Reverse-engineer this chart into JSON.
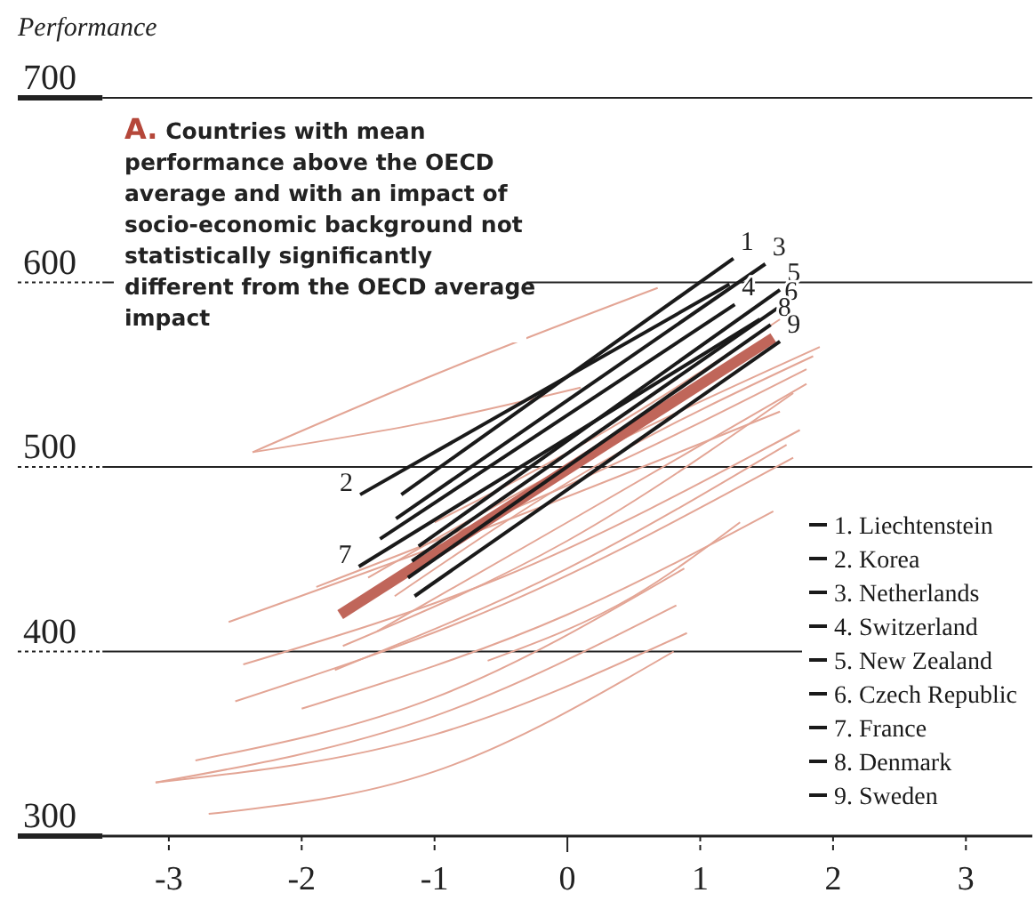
{
  "chart_data": {
    "type": "line",
    "title": "A. Countries with mean performance above the OECD average and with an impact of socio-economic background not statistically significantly different from the OECD average impact",
    "ylabel": "Performance",
    "xlim": [
      -3.5,
      3.5
    ],
    "xticks": [
      -3,
      -2,
      -1,
      0,
      1,
      2,
      3
    ],
    "ylim": [
      300,
      700
    ],
    "yticks": [
      300,
      400,
      500,
      600,
      700
    ],
    "grid": "y",
    "legend": "bottom right",
    "series": [
      {
        "color": "#e3a595",
        "x": [
          -2.37,
          -1,
          0.68
        ],
        "values": [
          508,
          550,
          597
        ]
      },
      {
        "color": "#e3a595",
        "x": [
          -2.37,
          -1,
          0.1
        ],
        "values": [
          508,
          525,
          543
        ]
      },
      {
        "color": "#e3a595",
        "x": [
          -2.55,
          -0.5,
          1.6
        ],
        "values": [
          416,
          470,
          530
        ]
      },
      {
        "color": "#e3a595",
        "x": [
          -1.89,
          0,
          1.8
        ],
        "values": [
          435,
          490,
          553
        ]
      },
      {
        "color": "#e3a595",
        "x": [
          -2.44,
          -0.5,
          1.75
        ],
        "values": [
          393,
          440,
          520
        ]
      },
      {
        "color": "#e3a595",
        "x": [
          -2.5,
          -0.5,
          1.7
        ],
        "values": [
          373,
          425,
          505
        ]
      },
      {
        "color": "#e3a595",
        "x": [
          -2.0,
          0,
          1.55
        ],
        "values": [
          369,
          420,
          476
        ]
      },
      {
        "color": "#e3a595",
        "x": [
          -2.8,
          -1,
          0.88
        ],
        "values": [
          341,
          375,
          445
        ]
      },
      {
        "color": "#e3a595",
        "x": [
          -3.1,
          -1,
          0.82
        ],
        "values": [
          329,
          365,
          425
        ]
      },
      {
        "color": "#e3a595",
        "x": [
          -3.1,
          -1,
          0.9
        ],
        "values": [
          329,
          355,
          410
        ]
      },
      {
        "color": "#e3a595",
        "x": [
          -2.7,
          -1,
          0.8
        ],
        "values": [
          312,
          335,
          400
        ]
      },
      {
        "color": "#e3a595",
        "x": [
          -1.69,
          0,
          1.7
        ],
        "values": [
          403,
          460,
          540
        ]
      },
      {
        "color": "#e3a595",
        "x": [
          -1.75,
          0,
          1.65
        ],
        "values": [
          390,
          445,
          512
        ]
      },
      {
        "color": "#e3a595",
        "x": [
          -1.43,
          0,
          1.8
        ],
        "values": [
          411,
          470,
          545
        ]
      },
      {
        "color": "#e3a595",
        "x": [
          -1.5,
          0,
          1.9
        ],
        "values": [
          440,
          500,
          565
        ]
      },
      {
        "color": "#e3a595",
        "x": [
          -1.3,
          0.2,
          1.85
        ],
        "values": [
          430,
          500,
          560
        ]
      },
      {
        "color": "#e3a595",
        "x": [
          -1.0,
          0.3,
          1.6
        ],
        "values": [
          470,
          520,
          580
        ]
      },
      {
        "color": "#e3a595",
        "x": [
          -0.6,
          0.5,
          1.3
        ],
        "values": [
          395,
          430,
          470
        ]
      },
      {
        "color": "#c0665a",
        "x": [
          -1.71,
          1.55
        ],
        "values": [
          420,
          570
        ]
      },
      {
        "name": "1. Liechtenstein",
        "color": "#1a1a1a",
        "x": [
          -1.25,
          1.25
        ],
        "values": [
          485,
          613
        ]
      },
      {
        "name": "2. Korea",
        "color": "#1a1a1a",
        "x": [
          -1.56,
          1.22
        ],
        "values": [
          485,
          599
        ]
      },
      {
        "name": "3. Netherlands",
        "color": "#1a1a1a",
        "x": [
          -1.29,
          1.49
        ],
        "values": [
          472,
          610
        ]
      },
      {
        "name": "4. Switzerland",
        "color": "#1a1a1a",
        "x": [
          -1.41,
          1.26
        ],
        "values": [
          461,
          588
        ]
      },
      {
        "name": "5. New Zealand",
        "color": "#1a1a1a",
        "x": [
          -1.12,
          1.6
        ],
        "values": [
          457,
          596
        ]
      },
      {
        "name": "6. Czech Republic",
        "color": "#1a1a1a",
        "x": [
          -1.17,
          1.58
        ],
        "values": [
          449,
          586
        ]
      },
      {
        "name": "7. France",
        "color": "#1a1a1a",
        "x": [
          -1.57,
          1.45
        ],
        "values": [
          446,
          580
        ]
      },
      {
        "name": "8. Denmark",
        "color": "#1a1a1a",
        "x": [
          -1.2,
          1.53
        ],
        "values": [
          440,
          577
        ]
      },
      {
        "name": "9. Sweden",
        "color": "#1a1a1a",
        "x": [
          -1.15,
          1.6
        ],
        "values": [
          430,
          568
        ]
      }
    ],
    "annotations": [
      {
        "text": "1",
        "x": 1.25,
        "y": 613
      },
      {
        "text": "2",
        "x": -1.56,
        "y": 485
      },
      {
        "text": "3",
        "x": 1.49,
        "y": 610
      },
      {
        "text": "4",
        "x": 1.26,
        "y": 588
      },
      {
        "text": "5",
        "x": 1.6,
        "y": 596
      },
      {
        "text": "6",
        "x": 1.58,
        "y": 586
      },
      {
        "text": "7",
        "x": -1.57,
        "y": 446
      },
      {
        "text": "8",
        "x": 1.53,
        "y": 577
      },
      {
        "text": "9",
        "x": 1.6,
        "y": 568
      }
    ]
  }
}
